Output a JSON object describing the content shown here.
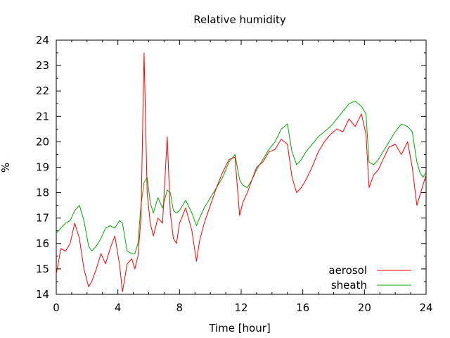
{
  "chart_data": {
    "type": "line",
    "title": "Relative humidity",
    "xlabel": "Time [hour]",
    "ylabel": "%",
    "xlim": [
      0,
      24
    ],
    "ylim": [
      14,
      24
    ],
    "xticks": [
      "0",
      "4",
      "8",
      "12",
      "16",
      "20",
      "24"
    ],
    "yticks": [
      "14",
      "15",
      "16",
      "17",
      "18",
      "19",
      "20",
      "21",
      "22",
      "23",
      "24"
    ],
    "grid": false,
    "legend": "bottom-right",
    "series": [
      {
        "name": "aerosol",
        "color": "#ff0000",
        "x": [
          0.0,
          0.3,
          0.6,
          0.9,
          1.2,
          1.5,
          1.8,
          2.1,
          2.3,
          2.6,
          2.9,
          3.2,
          3.5,
          3.8,
          4.1,
          4.3,
          4.6,
          4.9,
          5.1,
          5.3,
          5.5,
          5.7,
          5.9,
          6.1,
          6.3,
          6.6,
          6.9,
          7.2,
          7.4,
          7.6,
          7.8,
          8.0,
          8.4,
          8.8,
          9.1,
          9.3,
          9.6,
          10.0,
          10.4,
          10.8,
          11.2,
          11.6,
          11.9,
          12.1,
          12.4,
          12.7,
          13.0,
          13.4,
          13.8,
          14.2,
          14.6,
          15.0,
          15.3,
          15.6,
          15.9,
          16.2,
          16.6,
          17.0,
          17.4,
          17.8,
          18.2,
          18.6,
          19.0,
          19.4,
          19.8,
          20.1,
          20.3,
          20.6,
          20.9,
          21.2,
          21.6,
          22.0,
          22.4,
          22.8,
          23.1,
          23.4,
          23.6,
          23.8,
          24.0
        ],
        "y": [
          14.8,
          15.8,
          15.7,
          16.0,
          16.8,
          16.2,
          15.0,
          14.3,
          14.5,
          15.0,
          15.6,
          15.2,
          15.8,
          16.3,
          15.2,
          14.1,
          15.2,
          15.4,
          15.0,
          15.5,
          17.0,
          23.5,
          18.0,
          16.8,
          16.3,
          17.0,
          16.8,
          20.2,
          17.2,
          16.2,
          16.0,
          16.8,
          17.4,
          16.5,
          15.3,
          16.1,
          16.8,
          17.5,
          18.2,
          18.8,
          19.3,
          19.4,
          17.1,
          17.6,
          18.0,
          18.5,
          19.0,
          19.2,
          19.6,
          19.7,
          20.1,
          19.9,
          18.6,
          18.0,
          18.2,
          18.5,
          19.0,
          19.6,
          20.0,
          20.3,
          20.5,
          20.4,
          20.9,
          20.6,
          21.1,
          20.3,
          18.2,
          18.7,
          18.9,
          19.3,
          19.8,
          19.9,
          19.5,
          20.0,
          19.0,
          17.5,
          17.9,
          18.3,
          18.7
        ]
      },
      {
        "name": "sheath",
        "color": "#00aa00",
        "x": [
          0.0,
          0.3,
          0.6,
          0.9,
          1.2,
          1.5,
          1.8,
          2.1,
          2.3,
          2.6,
          2.9,
          3.2,
          3.5,
          3.8,
          4.1,
          4.3,
          4.6,
          4.9,
          5.1,
          5.3,
          5.5,
          5.7,
          5.9,
          6.1,
          6.3,
          6.6,
          6.9,
          7.2,
          7.4,
          7.6,
          7.8,
          8.0,
          8.4,
          8.8,
          9.1,
          9.3,
          9.6,
          10.0,
          10.4,
          10.8,
          11.2,
          11.6,
          11.9,
          12.1,
          12.4,
          12.7,
          13.0,
          13.4,
          13.8,
          14.2,
          14.6,
          15.0,
          15.3,
          15.6,
          15.9,
          16.2,
          16.6,
          17.0,
          17.4,
          17.8,
          18.2,
          18.6,
          19.0,
          19.4,
          19.8,
          20.1,
          20.3,
          20.6,
          20.9,
          21.2,
          21.6,
          22.0,
          22.4,
          22.8,
          23.1,
          23.4,
          23.6,
          23.8,
          24.0
        ],
        "y": [
          16.4,
          16.6,
          16.8,
          16.9,
          17.3,
          17.5,
          16.9,
          15.9,
          15.7,
          15.9,
          16.2,
          16.6,
          16.7,
          16.6,
          16.9,
          16.8,
          15.7,
          15.6,
          15.6,
          16.0,
          17.5,
          18.4,
          18.6,
          17.6,
          17.2,
          17.8,
          17.4,
          18.1,
          18.0,
          17.3,
          17.2,
          17.3,
          17.7,
          17.2,
          16.7,
          17.0,
          17.4,
          17.8,
          18.2,
          18.6,
          19.2,
          19.5,
          18.5,
          18.3,
          18.2,
          18.5,
          18.9,
          19.3,
          19.7,
          20.0,
          20.5,
          20.7,
          19.6,
          19.1,
          19.3,
          19.6,
          19.9,
          20.2,
          20.4,
          20.6,
          20.9,
          21.2,
          21.5,
          21.6,
          21.4,
          21.1,
          19.2,
          19.1,
          19.3,
          19.6,
          20.0,
          20.4,
          20.7,
          20.6,
          20.4,
          19.2,
          18.8,
          18.6,
          18.8
        ]
      }
    ]
  }
}
